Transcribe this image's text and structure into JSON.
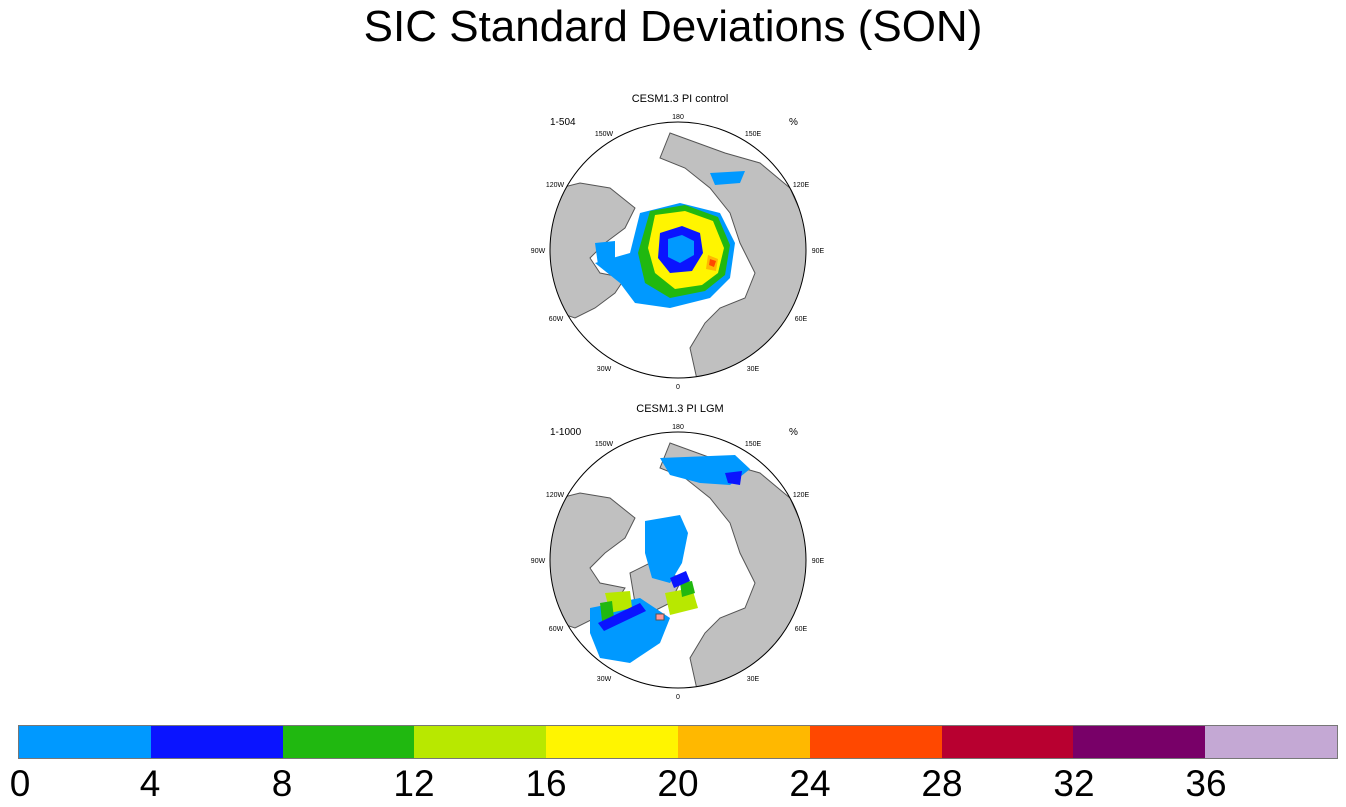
{
  "title": "SIC Standard Deviations (SON)",
  "panels": [
    {
      "title": "CESM1.3 PI control",
      "years": "1-504",
      "unit": "%"
    },
    {
      "title": "CESM1.3 PI LGM",
      "years": "1-1000",
      "unit": "%"
    }
  ],
  "lon_labels": [
    "180",
    "150E",
    "120E",
    "90E",
    "60E",
    "30E",
    "0",
    "30W",
    "60W",
    "90W",
    "120W",
    "150W"
  ],
  "colorbar": {
    "colors": [
      "#0099ff",
      "#0a14ff",
      "#20b810",
      "#b8e800",
      "#fff500",
      "#ffb800",
      "#ff4800",
      "#b80030",
      "#780068",
      "#c4a8d4"
    ],
    "tick_labels": [
      "0",
      "4",
      "8",
      "12",
      "16",
      "20",
      "24",
      "28",
      "32",
      "36"
    ]
  },
  "land_color": "#c0c0c0"
}
